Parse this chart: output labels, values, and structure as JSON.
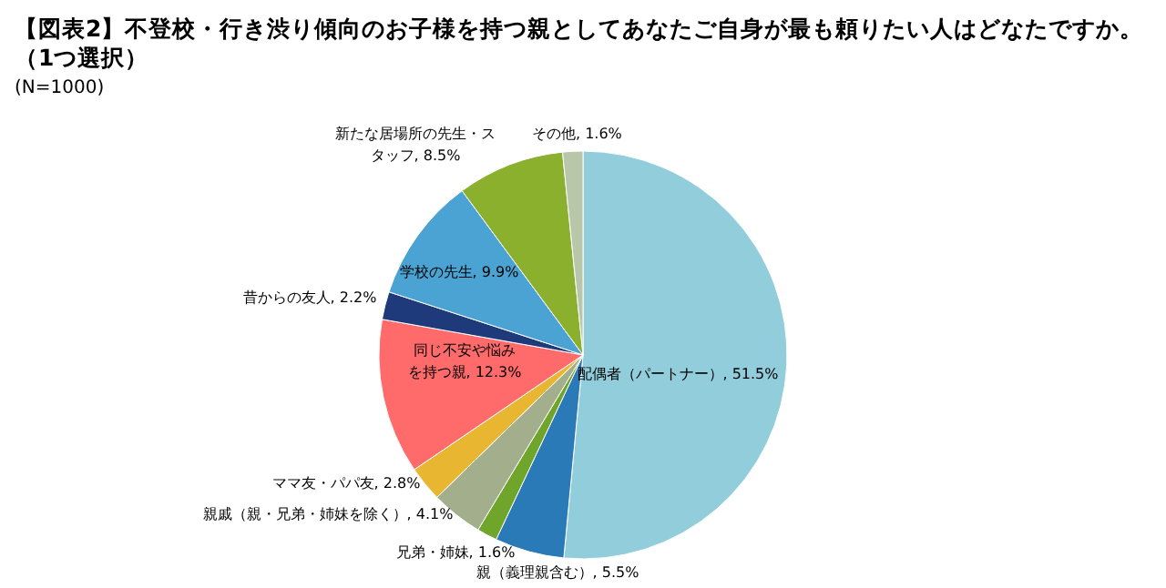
{
  "chart_data": {
    "type": "pie",
    "title": "【図表2】不登校・行き渋り傾向のお子様を持つ親としてあなたご自身が最も頼りたい人はどなたですか。",
    "subtitle": "（1つ選択）",
    "annotations": [
      "(N=1000)"
    ],
    "categories": [
      "配偶者（パートナー）",
      "親（義理親含む）",
      "兄弟・姉妹",
      "親戚（親・兄弟・姉妹を除く）",
      "ママ友・パパ友",
      "同じ不安や悩みを持つ親",
      "昔からの友人",
      "学校の先生",
      "新たな居場所の先生・スタッフ",
      "その他"
    ],
    "values": [
      51.5,
      5.5,
      1.6,
      4.1,
      2.8,
      12.3,
      2.2,
      9.9,
      8.5,
      1.6
    ],
    "colors": [
      "#92cddc",
      "#2a7ab8",
      "#6ea52a",
      "#a3ae8c",
      "#e8b630",
      "#ff6b6b",
      "#1f3a7a",
      "#4ba3d3",
      "#8ab02e",
      "#b8c6aa"
    ],
    "value_labels": [
      "51.5%",
      "5.5%",
      "1.6%",
      "4.1%",
      "2.8%",
      "12.3%",
      "2.2%",
      "9.9%",
      "8.5%",
      "1.6%"
    ]
  }
}
